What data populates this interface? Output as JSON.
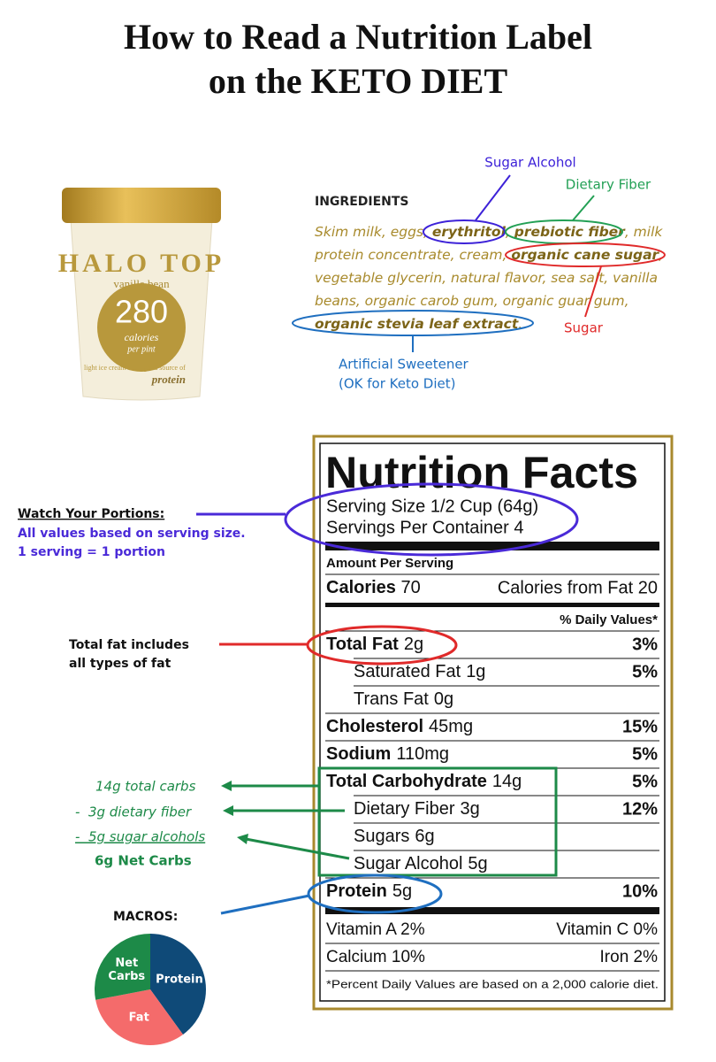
{
  "header": {
    "title_lines": [
      "How to Read a Nutrition Label",
      "on the KETO DIET"
    ]
  },
  "product": {
    "brand": "HALO TOP",
    "flavor": "vanilla bean",
    "calories": "280",
    "calories_label": [
      "calories",
      "per pint"
    ],
    "type": "light ice cream",
    "claim": [
      "good source of",
      "protein"
    ]
  },
  "ingredients": {
    "heading": "INGREDIENTS",
    "lines": [
      [
        {
          "text": "Skim milk, eggs, "
        },
        {
          "text": "erythritol",
          "bold": true
        },
        {
          "text": ", "
        },
        {
          "text": "prebiotic fiber",
          "bold": true
        },
        {
          "text": ", milk"
        }
      ],
      [
        {
          "text": "protein concentrate, cream, "
        },
        {
          "text": "organic cane sugar",
          "bold": true
        },
        {
          "text": ","
        }
      ],
      [
        {
          "text": "vegetable glycerin, natural flavor, sea salt, vanilla"
        }
      ],
      [
        {
          "text": "beans, organic carob gum, organic guar gum,"
        }
      ],
      [
        {
          "text": "organic stevia leaf extract",
          "bold": true
        },
        {
          "text": "."
        }
      ]
    ]
  },
  "ingredient_notes": {
    "sugar_alcohol": "Sugar Alcohol",
    "dietary_fiber": "Dietary Fiber",
    "sugar": "Sugar",
    "sweetener": [
      "Artificial Sweetener",
      "(OK for Keto Diet)"
    ]
  },
  "nutrition": {
    "title": "Nutrition Facts",
    "serving_size": "Serving Size 1/2 Cup (64g)",
    "servings": "Servings Per Container 4",
    "amount_per_serving": "Amount Per Serving",
    "calories": {
      "label": "Calories",
      "amount": "70",
      "from_fat": "Calories from Fat 20"
    },
    "daily_values_heading": "% Daily Values*",
    "rows": [
      {
        "name": "Total Fat",
        "amount": "2g",
        "dv": "3%",
        "bold": true
      },
      {
        "name": "Saturated Fat",
        "amount": "1g",
        "dv": "5%",
        "indent": true
      },
      {
        "name": "Trans Fat",
        "amount": "0g",
        "indent": true
      },
      {
        "name": "Cholesterol",
        "amount": "45mg",
        "dv": "15%",
        "bold": true
      },
      {
        "name": "Sodium",
        "amount": "110mg",
        "dv": "5%",
        "bold": true
      },
      {
        "name": "Total Carbohydrate",
        "amount": "14g",
        "dv": "5%",
        "bold": true
      },
      {
        "name": "Dietary Fiber",
        "amount": "3g",
        "dv": "12%",
        "indent": true
      },
      {
        "name": "Sugars",
        "amount": "6g",
        "indent": true
      },
      {
        "name": "Sugar Alcohol",
        "amount": "5g",
        "indent": true
      },
      {
        "name": "Protein",
        "amount": "5g",
        "dv": "10%",
        "bold": true
      }
    ],
    "vitamins": [
      [
        "Vitamin A 2%",
        "Vitamin C 0%"
      ],
      [
        "Calcium 10%",
        "Iron 2%"
      ]
    ],
    "footnote": "*Percent Daily Values are based on a 2,000 calorie diet."
  },
  "notes": {
    "portions": {
      "heading": "Watch Your Portions:",
      "lines": [
        "All values based on serving size.",
        "1 serving = 1 portion"
      ]
    },
    "fat": [
      "Total fat includes",
      "all types of fat"
    ],
    "carbs": [
      "14g total carbs",
      "-  3g dietary fiber",
      "-  5g sugar alcohols",
      "6g Net Carbs"
    ]
  },
  "chart_data": {
    "type": "pie",
    "title": "MACROS:",
    "categories": [
      "Protein",
      "Fat",
      "Net Carbs"
    ],
    "values": [
      40,
      32,
      28
    ],
    "colors": [
      "#0f4a78",
      "#f46b6b",
      "#1d8a48"
    ]
  }
}
